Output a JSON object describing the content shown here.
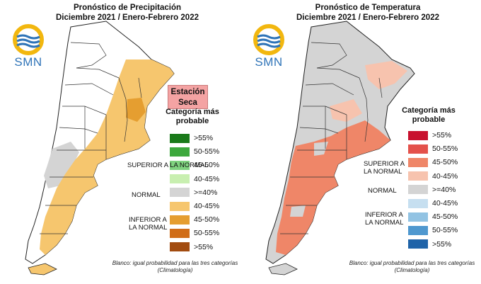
{
  "precip": {
    "title_line1": "Pronóstico de Precipitación",
    "title_line2": "Diciembre 2021 / Enero-Febrero 2022",
    "logo_text": "SMN",
    "dry_badge": "Estación Seca",
    "legend_title": "Categoría más probable",
    "legend": [
      {
        "label": ">55%",
        "color": "#1a7a1a"
      },
      {
        "label": "50-55%",
        "color": "#3da83d"
      },
      {
        "label": "45-50%",
        "color": "#7fd27f"
      },
      {
        "label": "40-45%",
        "color": "#c8efb0"
      },
      {
        "label": ">=40%",
        "color": "#d4d4d4"
      },
      {
        "label": "40-45%",
        "color": "#f6c66e"
      },
      {
        "label": "45-50%",
        "color": "#e59e30"
      },
      {
        "label": "50-55%",
        "color": "#d06d18"
      },
      {
        "label": ">55%",
        "color": "#a24c10"
      }
    ],
    "cat_superior": "SUPERIOR A LA NORMAL",
    "cat_normal": "NORMAL",
    "cat_inferior": "INFERIOR A LA NORMAL",
    "note": "Blanco: igual probabilidad para las tres categorías (Climatología)",
    "map_fill": "#f6c66e"
  },
  "temp": {
    "title_line1": "Pronóstico de Temperatura",
    "title_line2": "Diciembre 2021 / Enero-Febrero 2022",
    "logo_text": "SMN",
    "legend_title": "Categoría más probable",
    "legend": [
      {
        "label": ">55%",
        "color": "#c8102e"
      },
      {
        "label": "50-55%",
        "color": "#e4514b"
      },
      {
        "label": "45-50%",
        "color": "#ef8668"
      },
      {
        "label": "40-45%",
        "color": "#f7c3ae"
      },
      {
        "label": ">=40%",
        "color": "#d4d4d4"
      },
      {
        "label": "40-45%",
        "color": "#c6dff0"
      },
      {
        "label": "45-50%",
        "color": "#92c3e3"
      },
      {
        "label": "50-55%",
        "color": "#4f98cf"
      },
      {
        "label": ">55%",
        "color": "#1f63a8"
      }
    ],
    "cat_superior": "SUPERIOR A LA NORMAL",
    "cat_normal": "NORMAL",
    "cat_inferior": "INFERIOR A LA NORMAL",
    "note": "Blanco: igual probabilidad para las tres categorías (Climatología)",
    "map_fill": "#ef8668"
  }
}
